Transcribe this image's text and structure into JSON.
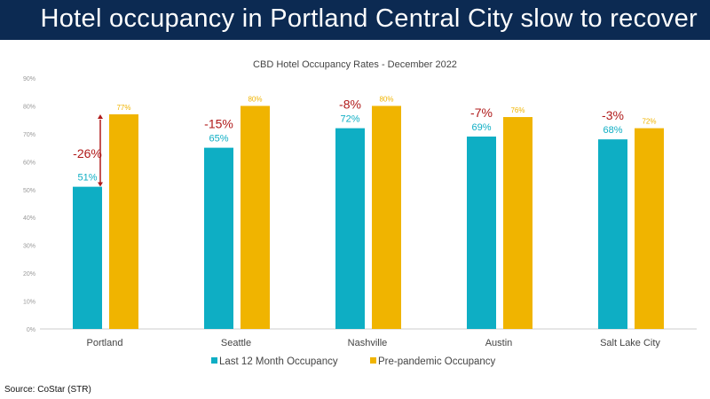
{
  "header": {
    "title": "Hotel occupancy in Portland Central City slow to recover"
  },
  "source": "Source: CoStar (STR)",
  "chart_data": {
    "type": "bar",
    "title": "CBD Hotel Occupancy Rates - December 2022",
    "categories": [
      "Portland",
      "Seattle",
      "Nashville",
      "Austin",
      "Salt Lake City"
    ],
    "series": [
      {
        "name": "Last 12 Month Occupancy",
        "values": [
          51,
          65,
          72,
          69,
          68
        ],
        "labels": [
          "51%",
          "65%",
          "72%",
          "69%",
          "68%"
        ],
        "color": "#0eaec4"
      },
      {
        "name": "Pre-pandemic Occupancy",
        "values": [
          77,
          80,
          80,
          76,
          72
        ],
        "labels": [
          "77%",
          "80%",
          "80%",
          "76%",
          "72%"
        ],
        "color": "#f0b400"
      }
    ],
    "differences": [
      "-26%",
      "-15%",
      "-8%",
      "-7%",
      "-3%"
    ],
    "difference_color": "#b01a1a",
    "ylim": [
      0,
      90
    ],
    "yticks": [
      "0%",
      "10%",
      "20%",
      "30%",
      "40%",
      "50%",
      "60%",
      "70%",
      "80%",
      "90%"
    ],
    "grid": false,
    "legend": "bottom"
  }
}
